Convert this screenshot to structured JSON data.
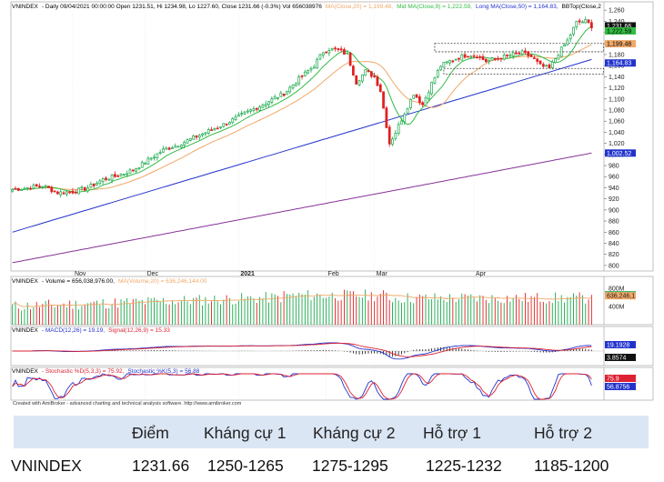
{
  "header": {
    "main": {
      "symbol": "VNINDEX",
      "info": "- Daily 09/04/2021 00:00:00 Open 1231.51, Hi 1234.98, Lo 1227.60, Close 1231.66 (-0.3%) Vol 656038976",
      "ma20": "MA(Close,20) = 1,199.48,",
      "mid": "Mid MA(Close,9) = 1,222.59,",
      "long": "Long MA(Close,50) = 1,164.83,",
      "bb": "BBTop(Close,2"
    },
    "volume": {
      "symbol": "VNINDEX",
      "text": "- Volume = 656,038,976.00,",
      "ma": "MA(Volume,20) = 636,246,144.00"
    },
    "macd": {
      "symbol": "VNINDEX",
      "macd": "- MACD(12,26) = 19.19,",
      "signal": "Signal(12,26,9) = 15.33"
    },
    "stoch": {
      "symbol": "VNINDEX",
      "k": "- Stochastic %D(5,3,3) = 75.92,",
      "k2": "Stochastic %K(5,3) = 56.88"
    },
    "credit": "Created with AmiBroker - advanced charting and technical analysis software. http://www.amibroker.com"
  },
  "colors": {
    "up": "#18a84a",
    "down": "#e02020",
    "ma20": "#f0a868",
    "ma9": "#33bb44",
    "ma50": "#2233cc",
    "long": "#883399",
    "macd": "#2233cc",
    "signal": "#dd2233",
    "hist": "#111111",
    "stochK": "#2233cc",
    "stochD": "#dd2233",
    "volMA": "#f0a868",
    "support": "#444444"
  },
  "chart_data": [
    {
      "type": "candlestick",
      "title": "VNINDEX Daily",
      "x_months": [
        "Nov",
        "Dec",
        "2021",
        "Feb",
        "Mar",
        "Apr"
      ],
      "ylim": [
        790,
        1275
      ],
      "y_ticks": [
        800,
        820,
        840,
        860,
        880,
        900,
        920,
        940,
        960,
        980,
        1000,
        1020,
        1040,
        1060,
        1080,
        1100,
        1120,
        1140,
        1160,
        1180,
        1200,
        1220,
        1240,
        1260
      ],
      "y_markers": [
        {
          "label": "1,231.66",
          "value": 1231.66,
          "bg": "#111111",
          "fg": "#ffffff"
        },
        {
          "label": "1,222.59",
          "value": 1222.59,
          "bg": "#33bb44",
          "fg": "#000000"
        },
        {
          "label": "1,199.48",
          "value": 1199.48,
          "bg": "#f0a868",
          "fg": "#000000"
        },
        {
          "label": "1,164.83",
          "value": 1164.83,
          "bg": "#2233cc",
          "fg": "#ffffff"
        },
        {
          "label": "1,002.52",
          "value": 1002.52,
          "bg": "#2233cc",
          "fg": "#ffffff"
        }
      ],
      "close_points": [
        [
          0,
          937
        ],
        [
          5,
          940
        ],
        [
          10,
          944
        ],
        [
          15,
          931
        ],
        [
          20,
          933
        ],
        [
          25,
          940
        ],
        [
          30,
          955
        ],
        [
          35,
          962
        ],
        [
          40,
          972
        ],
        [
          45,
          990
        ],
        [
          50,
          1008
        ],
        [
          55,
          1018
        ],
        [
          60,
          1030
        ],
        [
          65,
          1042
        ],
        [
          70,
          1054
        ],
        [
          75,
          1068
        ],
        [
          80,
          1082
        ],
        [
          85,
          1096
        ],
        [
          90,
          1110
        ],
        [
          95,
          1136
        ],
        [
          100,
          1160
        ],
        [
          103,
          1185
        ],
        [
          105,
          1190
        ],
        [
          108,
          1188
        ],
        [
          111,
          1180
        ],
        [
          114,
          1130
        ],
        [
          117,
          1150
        ],
        [
          120,
          1140
        ],
        [
          122,
          1115
        ],
        [
          125,
          1020
        ],
        [
          127,
          1040
        ],
        [
          130,
          1075
        ],
        [
          133,
          1110
        ],
        [
          136,
          1090
        ],
        [
          139,
          1128
        ],
        [
          142,
          1160
        ],
        [
          145,
          1168
        ],
        [
          148,
          1175
        ],
        [
          151,
          1180
        ],
        [
          154,
          1178
        ],
        [
          157,
          1168
        ],
        [
          160,
          1172
        ],
        [
          163,
          1176
        ],
        [
          166,
          1180
        ],
        [
          169,
          1183
        ],
        [
          172,
          1176
        ],
        [
          175,
          1160
        ],
        [
          178,
          1155
        ],
        [
          181,
          1182
        ],
        [
          184,
          1205
        ],
        [
          187,
          1238
        ],
        [
          190,
          1240
        ],
        [
          192,
          1231.66
        ]
      ],
      "series": [
        {
          "name": "MA(Close,20)",
          "value": 1199.48
        },
        {
          "name": "Mid MA(Close,9)",
          "value": 1222.59
        },
        {
          "name": "Long MA(Close,50)",
          "value": 1164.83
        }
      ],
      "support_zones": [
        {
          "from": 1185,
          "to": 1200,
          "x_start": 140,
          "x_end": 196
        },
        {
          "from": 1145,
          "to": 1155,
          "x_start": 143,
          "x_end": 196
        }
      ]
    },
    {
      "type": "bar",
      "title": "Volume",
      "ylim": [
        0,
        900
      ],
      "y_ticks_label": [
        "800M",
        "400M"
      ],
      "y_markers": [
        {
          "label": "656,038,9",
          "value": 656,
          "bg": "#18a84a",
          "fg": "#000000"
        },
        {
          "label": "636,246,1",
          "value": 636,
          "bg": "#f0a868",
          "fg": "#000000"
        }
      ],
      "ma_value": 636.25,
      "last_value": 656.04
    },
    {
      "type": "line",
      "title": "MACD",
      "y_markers": [
        {
          "label": "19.1928",
          "value": 19.19,
          "bg": "#2233cc",
          "fg": "#ffffff"
        },
        {
          "label": "3.8574",
          "value": 3.86,
          "bg": "#111111",
          "fg": "#ffffff"
        }
      ],
      "series": [
        {
          "name": "MACD(12,26)",
          "last": 19.19
        },
        {
          "name": "Signal(12,26,9)",
          "last": 15.33
        }
      ]
    },
    {
      "type": "line",
      "title": "Stochastic",
      "ylim": [
        0,
        100
      ],
      "y_markers": [
        {
          "label": "75.9",
          "value": 75.92,
          "bg": "#dd2233",
          "fg": "#ffffff"
        },
        {
          "label": "56.8756",
          "value": 56.88,
          "bg": "#2233cc",
          "fg": "#ffffff"
        }
      ],
      "series": [
        {
          "name": "Stochastic %D(5,3,3)",
          "last": 75.92
        },
        {
          "name": "Stochastic %K(5,3)",
          "last": 56.88
        }
      ]
    }
  ],
  "levels_table": {
    "columns": [
      "Điểm",
      "Kháng cự 1",
      "Kháng cự 2",
      "Hỗ trợ 1",
      "Hỗ trợ 2"
    ],
    "row": {
      "name": "VNINDEX",
      "values": [
        "1231.66",
        "1250-1265",
        "1275-1295",
        "1225-1232",
        "1185-1200"
      ]
    }
  }
}
